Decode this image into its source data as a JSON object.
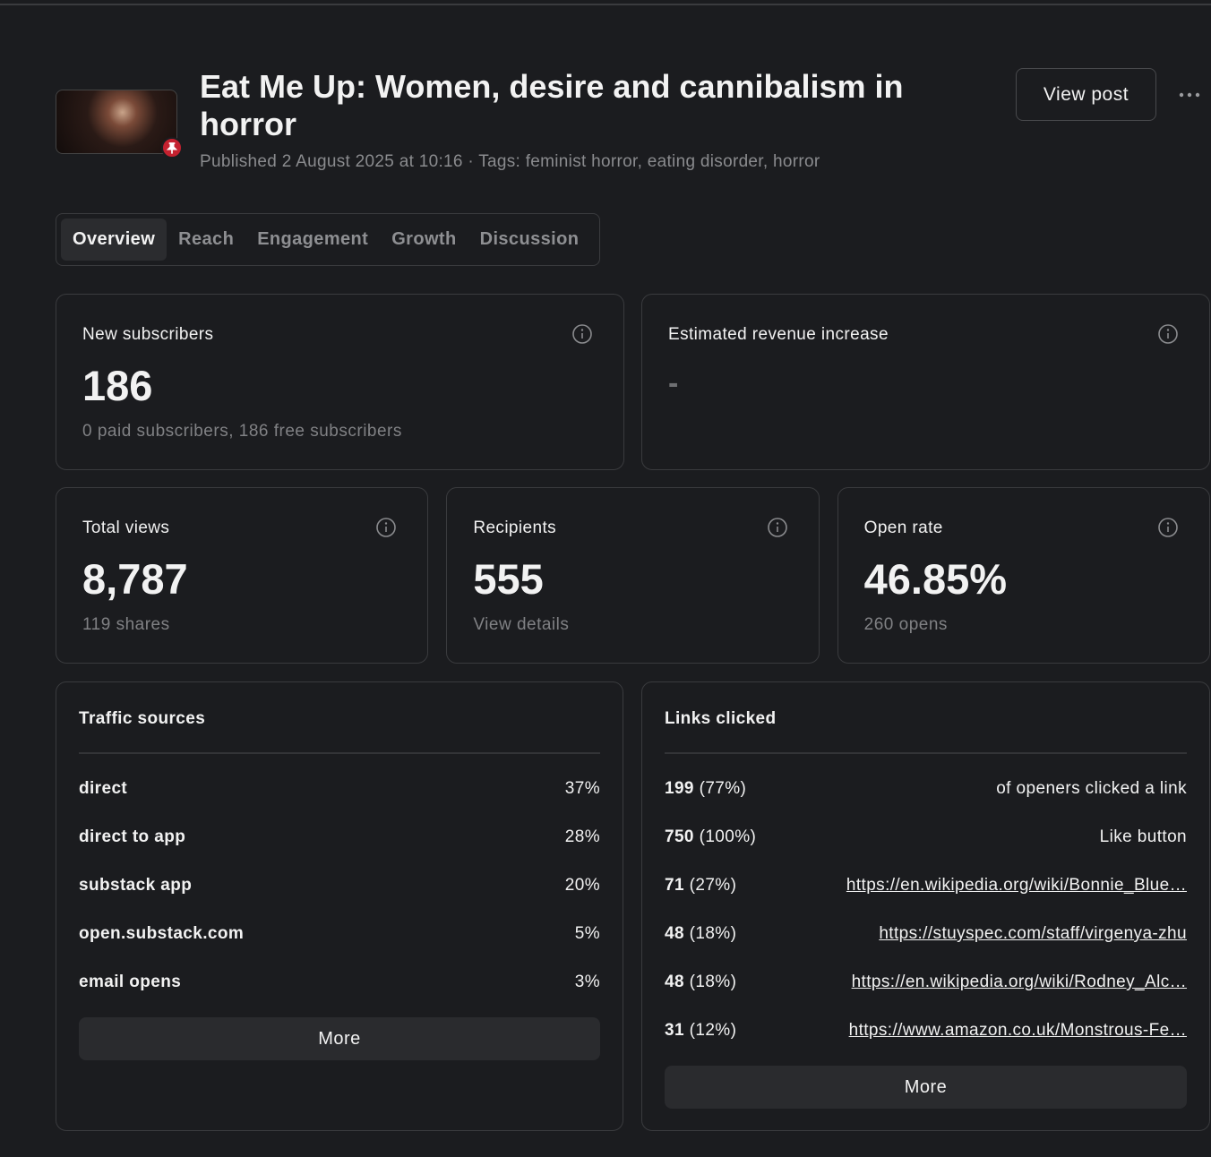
{
  "header": {
    "title": "Eat Me Up: Women, desire and cannibalism in horror",
    "meta": "Published 2 August 2025 at 10:16 · Tags: feminist horror, eating disorder, horror",
    "view_post": "View post"
  },
  "tabs": [
    "Overview",
    "Reach",
    "Engagement",
    "Growth",
    "Discussion"
  ],
  "summary_cards": [
    {
      "label": "New subscribers",
      "value": "186",
      "note": "0 paid subscribers, 186 free subscribers"
    },
    {
      "label": "Estimated revenue increase",
      "value": "-"
    }
  ],
  "stat_cards": [
    {
      "label": "Total views",
      "value": "8,787",
      "note": "119 shares"
    },
    {
      "label": "Recipients",
      "value": "555",
      "note": "View details"
    },
    {
      "label": "Open rate",
      "value": "46.85%",
      "note": "260 opens"
    }
  ],
  "traffic_sources": {
    "title": "Traffic sources",
    "rows": [
      {
        "source": "direct",
        "share": "37%"
      },
      {
        "source": "direct to app",
        "share": "28%"
      },
      {
        "source": "substack app",
        "share": "20%"
      },
      {
        "source": "open.substack.com",
        "share": "5%"
      },
      {
        "source": "email opens",
        "share": "3%"
      }
    ],
    "more": "More"
  },
  "links_clicked": {
    "title": "Links clicked",
    "rows": [
      {
        "count": "199",
        "percent": "(77%)",
        "label": "of openers clicked a link"
      },
      {
        "count": "750",
        "percent": "(100%)",
        "label": "Like button"
      },
      {
        "count": "71",
        "percent": "(27%)",
        "label": "https://en.wikipedia.org/wiki/Bonnie_Blue…"
      },
      {
        "count": "48",
        "percent": "(18%)",
        "label": "https://stuyspec.com/staff/virgenya-zhu"
      },
      {
        "count": "48",
        "percent": "(18%)",
        "label": "https://en.wikipedia.org/wiki/Rodney_Alc…"
      },
      {
        "count": "31",
        "percent": "(12%)",
        "label": "https://www.amazon.co.uk/Monstrous-Fe…"
      }
    ],
    "more": "More"
  }
}
